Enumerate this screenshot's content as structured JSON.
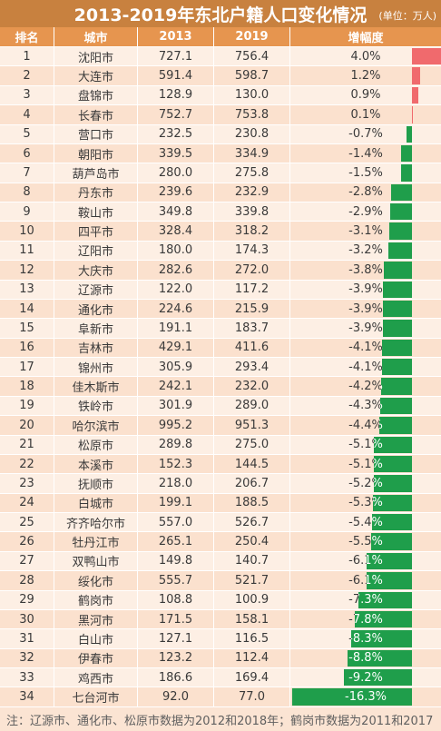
{
  "colors": {
    "title_bg": "#c8813f",
    "header_bg": "#e6954f",
    "row_odd": "#fdefe4",
    "row_even": "#fbe1ce",
    "footer_bg": "#fbe4d3",
    "increase_bar": "#f06a6d",
    "decrease_bar": "#1f9e4b"
  },
  "chart_data": {
    "type": "table",
    "title": "2013-2019年东北户籍人口变化情况",
    "unit": "(单位：万人)",
    "columns": [
      "排名",
      "城市",
      "2013",
      "2019",
      "增幅度"
    ],
    "rows": [
      {
        "rank": "1",
        "city": "沈阳市",
        "y2013": "727.1",
        "y2019": "756.4",
        "change": "4.0%"
      },
      {
        "rank": "2",
        "city": "大连市",
        "y2013": "591.4",
        "y2019": "598.7",
        "change": "1.2%"
      },
      {
        "rank": "3",
        "city": "盘锦市",
        "y2013": "128.9",
        "y2019": "130.0",
        "change": "0.9%"
      },
      {
        "rank": "4",
        "city": "长春市",
        "y2013": "752.7",
        "y2019": "753.8",
        "change": "0.1%"
      },
      {
        "rank": "5",
        "city": "营口市",
        "y2013": "232.5",
        "y2019": "230.8",
        "change": "-0.7%"
      },
      {
        "rank": "6",
        "city": "朝阳市",
        "y2013": "339.5",
        "y2019": "334.9",
        "change": "-1.4%"
      },
      {
        "rank": "7",
        "city": "葫芦岛市",
        "y2013": "280.0",
        "y2019": "275.8",
        "change": "-1.5%"
      },
      {
        "rank": "8",
        "city": "丹东市",
        "y2013": "239.6",
        "y2019": "232.9",
        "change": "-2.8%"
      },
      {
        "rank": "9",
        "city": "鞍山市",
        "y2013": "349.8",
        "y2019": "339.8",
        "change": "-2.9%"
      },
      {
        "rank": "10",
        "city": "四平市",
        "y2013": "328.4",
        "y2019": "318.2",
        "change": "-3.1%"
      },
      {
        "rank": "11",
        "city": "辽阳市",
        "y2013": "180.0",
        "y2019": "174.3",
        "change": "-3.2%"
      },
      {
        "rank": "12",
        "city": "大庆市",
        "y2013": "282.6",
        "y2019": "272.0",
        "change": "-3.8%"
      },
      {
        "rank": "13",
        "city": "辽源市",
        "y2013": "122.0",
        "y2019": "117.2",
        "change": "-3.9%"
      },
      {
        "rank": "14",
        "city": "通化市",
        "y2013": "224.6",
        "y2019": "215.9",
        "change": "-3.9%"
      },
      {
        "rank": "15",
        "city": "阜新市",
        "y2013": "191.1",
        "y2019": "183.7",
        "change": "-3.9%"
      },
      {
        "rank": "16",
        "city": "吉林市",
        "y2013": "429.1",
        "y2019": "411.6",
        "change": "-4.1%"
      },
      {
        "rank": "17",
        "city": "锦州市",
        "y2013": "305.9",
        "y2019": "293.4",
        "change": "-4.1%"
      },
      {
        "rank": "18",
        "city": "佳木斯市",
        "y2013": "242.1",
        "y2019": "232.0",
        "change": "-4.2%"
      },
      {
        "rank": "19",
        "city": "铁岭市",
        "y2013": "301.9",
        "y2019": "289.0",
        "change": "-4.3%"
      },
      {
        "rank": "20",
        "city": "哈尔滨市",
        "y2013": "995.2",
        "y2019": "951.3",
        "change": "-4.4%"
      },
      {
        "rank": "21",
        "city": "松原市",
        "y2013": "289.8",
        "y2019": "275.0",
        "change": "-5.1%"
      },
      {
        "rank": "22",
        "city": "本溪市",
        "y2013": "152.3",
        "y2019": "144.5",
        "change": "-5.1%"
      },
      {
        "rank": "23",
        "city": "抚顺市",
        "y2013": "218.0",
        "y2019": "206.7",
        "change": "-5.2%"
      },
      {
        "rank": "24",
        "city": "白城市",
        "y2013": "199.1",
        "y2019": "188.5",
        "change": "-5.3%"
      },
      {
        "rank": "25",
        "city": "齐齐哈尔市",
        "y2013": "557.0",
        "y2019": "526.7",
        "change": "-5.4%"
      },
      {
        "rank": "26",
        "city": "牡丹江市",
        "y2013": "265.1",
        "y2019": "250.4",
        "change": "-5.5%"
      },
      {
        "rank": "27",
        "city": "双鸭山市",
        "y2013": "149.8",
        "y2019": "140.7",
        "change": "-6.1%"
      },
      {
        "rank": "28",
        "city": "绥化市",
        "y2013": "555.7",
        "y2019": "521.7",
        "change": "-6.1%"
      },
      {
        "rank": "29",
        "city": "鹤岗市",
        "y2013": "108.8",
        "y2019": "100.9",
        "change": "-7.3%"
      },
      {
        "rank": "30",
        "city": "黑河市",
        "y2013": "171.5",
        "y2019": "158.1",
        "change": "-7.8%"
      },
      {
        "rank": "31",
        "city": "白山市",
        "y2013": "127.1",
        "y2019": "116.5",
        "change": "-8.3%"
      },
      {
        "rank": "32",
        "city": "伊春市",
        "y2013": "123.2",
        "y2019": "112.4",
        "change": "-8.8%"
      },
      {
        "rank": "33",
        "city": "鸡西市",
        "y2013": "186.6",
        "y2019": "169.4",
        "change": "-9.2%"
      },
      {
        "rank": "34",
        "city": "七台河市",
        "y2013": "92.0",
        "y2019": "77.0",
        "change": "-16.3%"
      }
    ],
    "footnote": "注：辽源市、通化市、松原市数据为2012和2018年；鹤岗市数据为2011和2017"
  }
}
